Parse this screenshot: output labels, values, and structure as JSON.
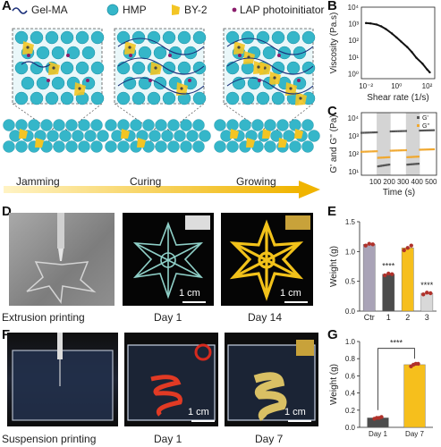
{
  "panels": {
    "A": "A",
    "B": "B",
    "C": "C",
    "D": "D",
    "E": "E",
    "F": "F",
    "G": "G"
  },
  "legendA": {
    "gelma": "Gel-MA",
    "hmp": "HMP",
    "by2": "BY-2",
    "lap": "LAP photoinitiator"
  },
  "stages": {
    "jamming": "Jamming",
    "curing": "Curing",
    "growing": "Growing"
  },
  "colors": {
    "hmp": "#35b6c9",
    "by2": "#f3c524",
    "gelma": "#1a2f7a",
    "lap": "#8a1d6b",
    "arrow": "#f0b400",
    "bar_ctr": "#a9a3b7",
    "bar_1": "#4c4c4c",
    "bar_2": "#f6bf1c",
    "bar_3": "#d8d8d8"
  },
  "photosD": {
    "caption1": "Extrusion printing",
    "caption2": "Day 1",
    "caption3": "Day 14",
    "scale2": "1 cm",
    "scale3": "1 cm"
  },
  "photosF": {
    "caption1": "Suspension printing",
    "caption2": "Day 1",
    "caption3": "Day 7",
    "scale2": "1 cm",
    "scale3": "1 cm"
  },
  "chart_data": [
    {
      "panel": "B",
      "type": "line",
      "xlabel": "Shear rate (1/s)",
      "ylabel": "Viscosity (Pa.s)",
      "xscale": "log",
      "yscale": "log",
      "xticks": [
        "10⁻²",
        "10⁰",
        "10²"
      ],
      "yticks": [
        "10⁰",
        "10¹",
        "10²",
        "10³",
        "10⁴"
      ],
      "x": [
        0.01,
        0.02,
        0.05,
        0.1,
        0.2,
        0.5,
        1,
        2,
        5,
        10,
        20,
        50,
        100,
        150
      ],
      "y": [
        1100,
        1050,
        900,
        700,
        480,
        260,
        150,
        85,
        40,
        20,
        9,
        4,
        1.8,
        1.2
      ]
    },
    {
      "panel": "C",
      "type": "scatter",
      "xlabel": "Time (s)",
      "ylabel": "G' and G'' (Pa)",
      "yscale": "log",
      "xticks": [
        "100",
        "200",
        "300",
        "400",
        "500"
      ],
      "yticks": [
        "10¹",
        "10²",
        "10³",
        "10⁴"
      ],
      "legend": [
        "G'",
        "G''"
      ],
      "shaded_intervals": [
        [
          110,
          210
        ],
        [
          320,
          420
        ]
      ],
      "series": [
        {
          "name": "G'",
          "segments": [
            {
              "x": [
                0,
                110
              ],
              "y": [
                1500,
                1600
              ]
            },
            {
              "x": [
                120,
                200
              ],
              "y": [
                20,
                25
              ]
            },
            {
              "x": [
                210,
                320
              ],
              "y": [
                1800,
                1900
              ]
            },
            {
              "x": [
                330,
                410
              ],
              "y": [
                25,
                28
              ]
            },
            {
              "x": [
                420,
                520
              ],
              "y": [
                2000,
                2100
              ]
            }
          ]
        },
        {
          "name": "G''",
          "segments": [
            {
              "x": [
                0,
                110
              ],
              "y": [
                130,
                140
              ]
            },
            {
              "x": [
                120,
                200
              ],
              "y": [
                60,
                65
              ]
            },
            {
              "x": [
                210,
                320
              ],
              "y": [
                150,
                160
              ]
            },
            {
              "x": [
                330,
                410
              ],
              "y": [
                65,
                70
              ]
            },
            {
              "x": [
                420,
                520
              ],
              "y": [
                170,
                180
              ]
            }
          ]
        }
      ]
    },
    {
      "panel": "E",
      "type": "bar",
      "ylabel": "Weight (g)",
      "categories": [
        "Ctr",
        "1",
        "2",
        "3"
      ],
      "values": [
        1.12,
        0.62,
        1.06,
        0.3
      ],
      "points": [
        [
          1.1,
          1.13,
          1.12
        ],
        [
          0.6,
          0.63,
          0.62
        ],
        [
          1.02,
          1.06,
          1.1
        ],
        [
          0.28,
          0.31,
          0.3
        ]
      ],
      "ylim": [
        0,
        1.5
      ],
      "yticks": [
        "0.0",
        "0.5",
        "1.0",
        "1.5"
      ],
      "significance": {
        "1": "****",
        "3": "****"
      }
    },
    {
      "panel": "G",
      "type": "bar",
      "ylabel": "Weight (g)",
      "categories": [
        "Day 1",
        "Day 7"
      ],
      "values": [
        0.11,
        0.73
      ],
      "points": [
        [
          0.1,
          0.11,
          0.11,
          0.12
        ],
        [
          0.71,
          0.73,
          0.74,
          0.74
        ]
      ],
      "ylim": [
        0,
        1.0
      ],
      "yticks": [
        "0.0",
        "0.2",
        "0.4",
        "0.6",
        "0.8",
        "1.0"
      ],
      "significance": "****"
    }
  ]
}
